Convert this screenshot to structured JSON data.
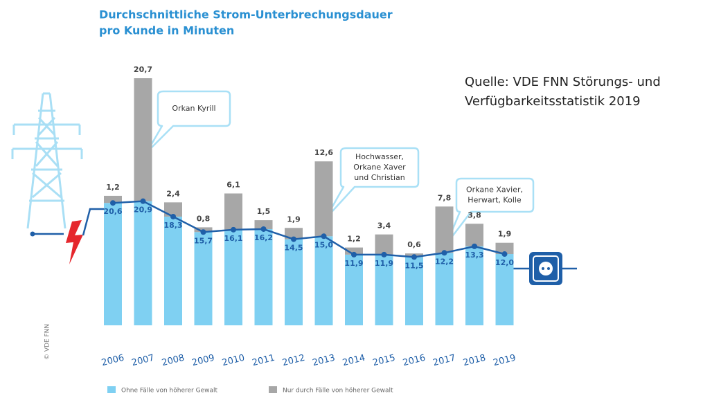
{
  "chart_data": {
    "type": "stacked-bar-line",
    "title": [
      "Durchschnittliche Strom-Unterbrechungsdauer",
      "pro Kunde in Minuten"
    ],
    "source": [
      "Quelle: VDE FNN Störungs- und",
      "Verfügbarkeitsstatistik 2019"
    ],
    "copyright": "© VDE FNN",
    "categories": [
      "2006",
      "2007",
      "2008",
      "2009",
      "2010",
      "2011",
      "2012",
      "2013",
      "2014",
      "2015",
      "2016",
      "2017",
      "2018",
      "2019"
    ],
    "series": [
      {
        "name": "Ohne Fälle von höherer Gewalt",
        "color": "#7fd0f2",
        "values": [
          20.6,
          20.9,
          18.3,
          15.7,
          16.1,
          16.2,
          14.5,
          15.0,
          11.9,
          11.9,
          11.5,
          12.2,
          13.3,
          12.0
        ],
        "value_labels": [
          "20,6",
          "20,9",
          "18,3",
          "15,7",
          "16,1",
          "16,2",
          "14,5",
          "15,0",
          "11,9",
          "11,9",
          "11,5",
          "12,2",
          "13,3",
          "12,0"
        ]
      },
      {
        "name": "Nur durch Fälle von höherer Gewalt",
        "color": "#a7a7a7",
        "values": [
          1.2,
          20.7,
          2.4,
          0.8,
          6.1,
          1.5,
          1.9,
          12.6,
          1.2,
          3.4,
          0.6,
          7.8,
          3.8,
          1.9
        ],
        "value_labels": [
          "1,2",
          "20,7",
          "2,4",
          "0,8",
          "6,1",
          "1,5",
          "1,9",
          "12,6",
          "1,2",
          "3,4",
          "0,6",
          "7,8",
          "3,8",
          "1,9"
        ]
      }
    ],
    "line_color": "#1f5fa8",
    "annotations": [
      {
        "lines": [
          "Orkan Kyrill"
        ]
      },
      {
        "lines": [
          "Hochwasser,",
          "Orkane Xaver",
          "und Christian"
        ]
      },
      {
        "lines": [
          "Orkane Xavier,",
          "Herwart, Kolle"
        ]
      }
    ]
  }
}
